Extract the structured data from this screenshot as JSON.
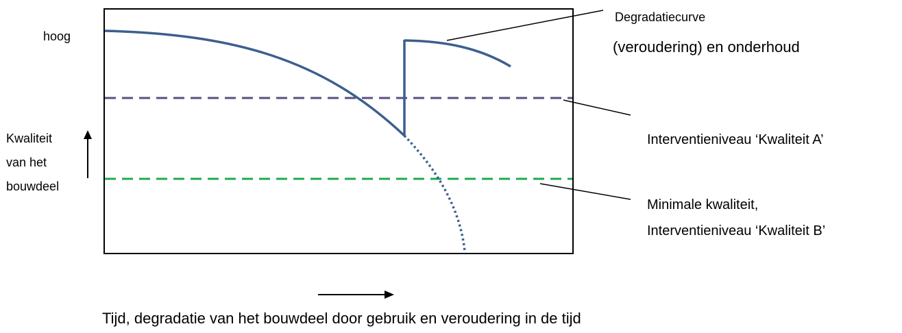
{
  "y_axis": {
    "top_label": "hoog",
    "label_lines": [
      "Kwaliteit",
      "van het",
      "bouwdeel"
    ]
  },
  "x_axis": {
    "caption": "Tijd, degradatie van het bouwdeel door gebruik en veroudering in de tijd"
  },
  "callouts": {
    "curve": [
      "Degradatiecurve",
      "(veroudering) en onderhoud"
    ],
    "level_a": [
      "Interventieniveau ‘Kwaliteit A’"
    ],
    "level_b": [
      "Minimale kwaliteit,",
      "Interventieniveau ‘Kwaliteit B’"
    ]
  },
  "colors": {
    "curve": "#3C5F8F",
    "level_a": "#5E4E7E",
    "level_b": "#1FA855",
    "frame": "#000000"
  }
}
